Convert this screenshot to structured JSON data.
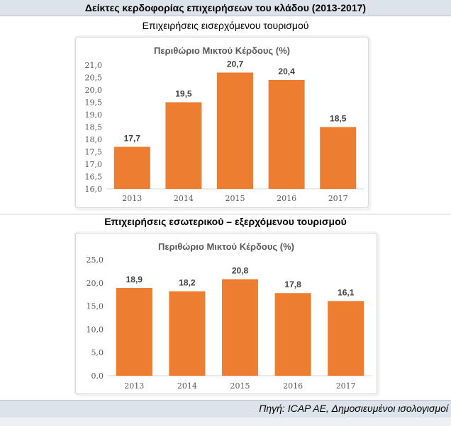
{
  "header": {
    "title": "Δείκτες κερδοφορίας επιχειρήσεων του κλάδου (2013-2017)"
  },
  "section1": {
    "title": "Επιχειρήσεις εισερχόμενου τουρισμού"
  },
  "section2": {
    "title": "Επιχειρήσεις εσωτερικού – εξερχόμενου τουρισμού"
  },
  "footer": {
    "source": "Πηγή: ICAP AE, Δημοσιευμένοι ισολογισμοί"
  },
  "colors": {
    "bar": "#ed7d31",
    "axis_text": "#595959",
    "grid": "#d9d9d9"
  },
  "chart_data": [
    {
      "type": "bar",
      "title": "Περιθώριο Μικτού Κέρδους (%)",
      "categories": [
        "2013",
        "2014",
        "2015",
        "2016",
        "2017"
      ],
      "values": [
        17.7,
        19.5,
        20.7,
        20.4,
        18.5
      ],
      "value_labels": [
        "17,7",
        "19,5",
        "20,7",
        "20,4",
        "18,5"
      ],
      "ylim": [
        16.0,
        21.0
      ],
      "yticks": [
        "16,0",
        "16,5",
        "17,0",
        "17,5",
        "18,0",
        "18,5",
        "19,0",
        "19,5",
        "20,0",
        "20,5",
        "21,0"
      ],
      "grid": false,
      "legend": "none"
    },
    {
      "type": "bar",
      "title": "Περιθώριο Μικτού Κέρδους (%)",
      "categories": [
        "2013",
        "2014",
        "2015",
        "2016",
        "2017"
      ],
      "values": [
        18.9,
        18.2,
        20.8,
        17.8,
        16.1
      ],
      "value_labels": [
        "18,9",
        "18,2",
        "20,8",
        "17,8",
        "16,1"
      ],
      "ylim": [
        0.0,
        25.0
      ],
      "yticks": [
        "0,0",
        "5,0",
        "10,0",
        "15,0",
        "20,0",
        "25,0"
      ],
      "grid": false,
      "legend": "none"
    }
  ]
}
